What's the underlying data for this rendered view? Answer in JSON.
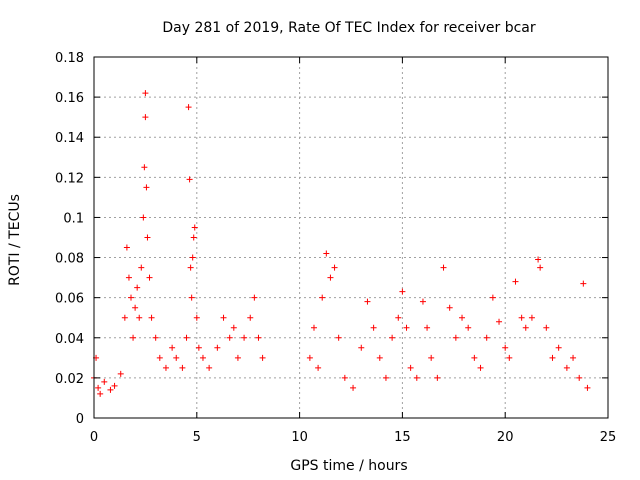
{
  "chart_data": {
    "type": "scatter",
    "title": "Day 281 of 2019, Rate Of TEC Index for receiver bcar",
    "xlabel": "GPS time / hours",
    "ylabel": "ROTI / TECUs",
    "xlim": [
      0,
      25
    ],
    "ylim": [
      0,
      0.18
    ],
    "xticks": [
      0,
      5,
      10,
      15,
      20,
      25
    ],
    "xtick_labels": [
      "0",
      "5",
      "10",
      "15",
      "20",
      "25"
    ],
    "yticks": [
      0,
      0.02,
      0.04,
      0.06,
      0.08,
      0.1,
      0.12,
      0.14,
      0.16,
      0.18
    ],
    "ytick_labels": [
      "0",
      "0.02",
      "0.04",
      "0.06",
      "0.08",
      "0.1",
      "0.12",
      "0.14",
      "0.16",
      "0.18"
    ],
    "grid": true,
    "marker": "+",
    "color": "#ff0000",
    "series": [
      {
        "name": "ROTI",
        "x": [
          0.0,
          0.1,
          0.2,
          0.3,
          0.5,
          0.8,
          1.0,
          1.3,
          1.5,
          1.6,
          1.7,
          1.8,
          1.9,
          2.0,
          2.1,
          2.2,
          2.3,
          2.4,
          2.45,
          2.5,
          2.5,
          2.55,
          2.6,
          2.7,
          2.8,
          3.0,
          3.2,
          3.5,
          3.8,
          4.0,
          4.3,
          4.5,
          4.6,
          4.65,
          4.7,
          4.75,
          4.8,
          4.85,
          4.9,
          5.0,
          5.1,
          5.3,
          5.6,
          6.0,
          6.3,
          6.6,
          6.8,
          7.0,
          7.3,
          7.6,
          7.8,
          8.0,
          8.2,
          10.5,
          10.7,
          10.9,
          11.1,
          11.3,
          11.5,
          11.7,
          11.9,
          12.2,
          12.6,
          13.0,
          13.3,
          13.6,
          13.9,
          14.2,
          14.5,
          14.8,
          15.0,
          15.2,
          15.4,
          15.7,
          16.0,
          16.2,
          16.4,
          16.7,
          17.0,
          17.3,
          17.6,
          17.9,
          18.2,
          18.5,
          18.8,
          19.1,
          19.4,
          19.7,
          20.0,
          20.2,
          20.5,
          20.8,
          21.0,
          21.3,
          21.6,
          21.7,
          22.0,
          22.3,
          22.6,
          23.0,
          23.3,
          23.6,
          23.8,
          24.0
        ],
        "y": [
          0.02,
          0.03,
          0.015,
          0.012,
          0.018,
          0.014,
          0.016,
          0.022,
          0.05,
          0.085,
          0.07,
          0.06,
          0.04,
          0.055,
          0.065,
          0.05,
          0.075,
          0.1,
          0.125,
          0.162,
          0.15,
          0.115,
          0.09,
          0.07,
          0.05,
          0.04,
          0.03,
          0.025,
          0.035,
          0.03,
          0.025,
          0.04,
          0.155,
          0.119,
          0.075,
          0.06,
          0.08,
          0.09,
          0.095,
          0.05,
          0.035,
          0.03,
          0.025,
          0.035,
          0.05,
          0.04,
          0.045,
          0.03,
          0.04,
          0.05,
          0.06,
          0.04,
          0.03,
          0.03,
          0.045,
          0.025,
          0.06,
          0.082,
          0.07,
          0.075,
          0.04,
          0.02,
          0.015,
          0.035,
          0.058,
          0.045,
          0.03,
          0.02,
          0.04,
          0.05,
          0.063,
          0.045,
          0.025,
          0.02,
          0.058,
          0.045,
          0.03,
          0.02,
          0.075,
          0.055,
          0.04,
          0.05,
          0.045,
          0.03,
          0.025,
          0.04,
          0.06,
          0.048,
          0.035,
          0.03,
          0.068,
          0.05,
          0.045,
          0.05,
          0.079,
          0.075,
          0.045,
          0.03,
          0.035,
          0.025,
          0.03,
          0.02,
          0.067,
          0.015
        ]
      }
    ]
  }
}
